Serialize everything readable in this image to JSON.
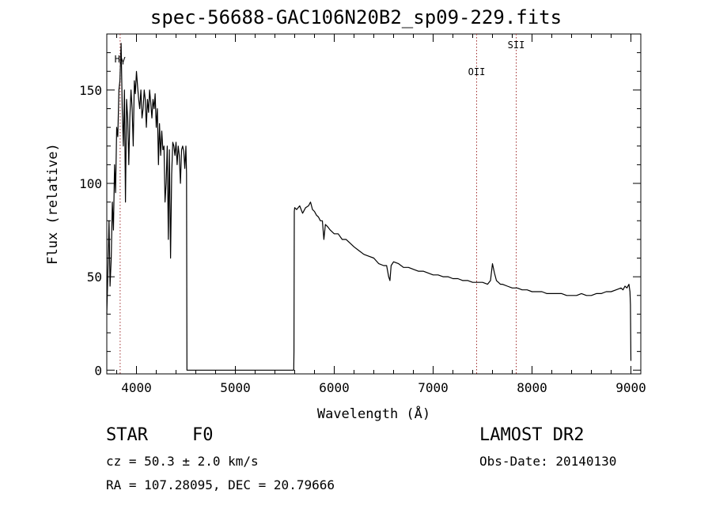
{
  "title": "spec-56688-GAC106N20B2_sp09-229.fits",
  "info": {
    "object_class": "STAR",
    "subclass": "F0",
    "survey": "LAMOST DR2",
    "redshift": "cz = 50.3 ± 2.0 km/s",
    "obs_date": "Obs-Date: 20140130",
    "coords": "RA = 107.28095, DEC =  20.79666"
  },
  "chart_data": {
    "type": "line",
    "title": "spec-56688-GAC106N20B2_sp09-229.fits",
    "xlabel": "Wavelength (Å)",
    "ylabel": "Flux (relative)",
    "xlim": [
      3700,
      9100
    ],
    "ylim": [
      -2,
      180
    ],
    "xticks": [
      4000,
      5000,
      6000,
      7000,
      8000,
      9000
    ],
    "yticks": [
      0,
      50,
      100,
      150
    ],
    "grid": false,
    "line_color": "#000000",
    "marker_color": "#a03030",
    "line_markers": [
      {
        "label": "Hγ",
        "x": 3835
      },
      {
        "label": "OII",
        "x": 7440
      },
      {
        "label": "SII",
        "x": 7840
      }
    ],
    "series": [
      {
        "x": [
          3700,
          3712,
          3722,
          3733,
          3745,
          3756,
          3767,
          3778,
          3789,
          3800,
          3811,
          3822,
          3833,
          3845,
          3856,
          3867,
          3878,
          3889,
          3900,
          3911,
          3922,
          3933,
          3945,
          3956,
          3967,
          3978,
          3989,
          4000,
          4011,
          4022,
          4033,
          4045,
          4056,
          4067,
          4078,
          4089,
          4100,
          4111,
          4122,
          4133,
          4145,
          4156,
          4167,
          4178,
          4189,
          4200,
          4211,
          4222,
          4233,
          4245,
          4256,
          4267,
          4278,
          4289,
          4300,
          4311,
          4322,
          4333,
          4345,
          4356,
          4367,
          4378,
          4389,
          4400,
          4411,
          4422,
          4433,
          4445,
          4456,
          4467,
          4478,
          4489,
          4500,
          4506,
          4510,
          5590,
          5593,
          5596,
          5600,
          5620,
          5650,
          5680,
          5710,
          5740,
          5760,
          5780,
          5800,
          5820,
          5840,
          5860,
          5880,
          5895,
          5910,
          5930,
          5960,
          6000,
          6040,
          6080,
          6120,
          6160,
          6200,
          6250,
          6300,
          6350,
          6400,
          6450,
          6500,
          6530,
          6550,
          6563,
          6575,
          6600,
          6650,
          6700,
          6750,
          6800,
          6850,
          6900,
          6950,
          7000,
          7050,
          7100,
          7150,
          7200,
          7250,
          7300,
          7350,
          7400,
          7450,
          7500,
          7550,
          7580,
          7600,
          7620,
          7640,
          7660,
          7680,
          7700,
          7750,
          7800,
          7850,
          7900,
          7950,
          8000,
          8050,
          8100,
          8150,
          8200,
          8250,
          8300,
          8350,
          8400,
          8450,
          8500,
          8550,
          8600,
          8650,
          8700,
          8750,
          8800,
          8850,
          8900,
          8920,
          8940,
          8960,
          8980,
          8990,
          8995,
          9000
        ],
        "values": [
          30,
          55,
          80,
          45,
          60,
          90,
          75,
          110,
          95,
          130,
          125,
          150,
          155,
          175,
          140,
          120,
          150,
          90,
          145,
          135,
          110,
          135,
          150,
          140,
          120,
          155,
          148,
          160,
          152,
          145,
          140,
          150,
          135,
          140,
          150,
          145,
          130,
          145,
          138,
          150,
          143,
          135,
          145,
          140,
          148,
          130,
          140,
          110,
          132,
          115,
          128,
          118,
          120,
          90,
          100,
          120,
          70,
          118,
          60,
          105,
          122,
          120,
          115,
          122,
          110,
          120,
          115,
          100,
          118,
          120,
          117,
          108,
          120,
          105,
          0,
          0,
          10,
          85,
          87,
          86,
          88,
          84,
          87,
          88,
          90,
          86,
          85,
          83,
          82,
          80,
          80,
          70,
          78,
          77,
          75,
          73,
          73,
          70,
          70,
          68,
          66,
          64,
          62,
          61,
          60,
          57,
          56,
          56,
          50,
          48,
          56,
          58,
          57,
          55,
          55,
          54,
          53,
          53,
          52,
          51,
          51,
          50,
          50,
          49,
          49,
          48,
          48,
          47,
          47,
          47,
          46,
          48,
          57,
          52,
          48,
          47,
          46,
          46,
          45,
          44,
          44,
          43,
          43,
          42,
          42,
          42,
          41,
          41,
          41,
          41,
          40,
          40,
          40,
          41,
          40,
          40,
          41,
          41,
          42,
          42,
          43,
          44,
          43,
          45,
          44,
          46,
          42,
          35,
          5
        ]
      }
    ]
  }
}
